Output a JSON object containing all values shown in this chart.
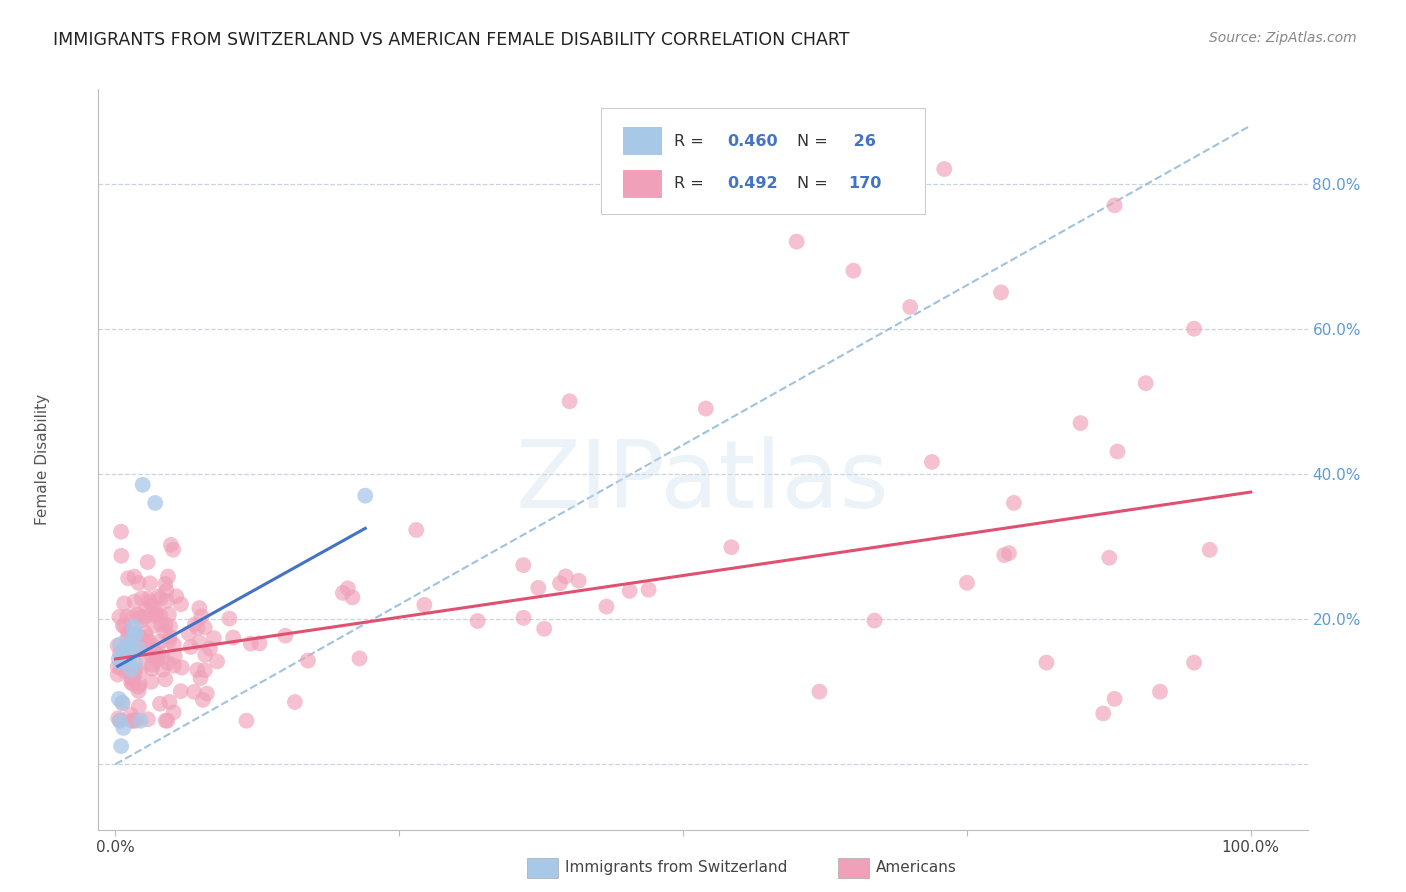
{
  "title": "IMMIGRANTS FROM SWITZERLAND VS AMERICAN FEMALE DISABILITY CORRELATION CHART",
  "source": "Source: ZipAtlas.com",
  "ylabel": "Female Disability",
  "color_swiss": "#a8c8e8",
  "color_american": "#f0a0b8",
  "color_swiss_line": "#4472c4",
  "color_american_line": "#e05070",
  "color_dashed": "#90b8d8",
  "background_color": "#ffffff",
  "grid_color": "#c8d4e0",
  "title_fontsize": 12.5,
  "axis_label_fontsize": 11,
  "tick_fontsize": 11,
  "source_fontsize": 10,
  "legend_r1": "0.460",
  "legend_n1": " 26",
  "legend_r2": "0.492",
  "legend_n2": "170",
  "watermark_text": "ZIPatlas"
}
